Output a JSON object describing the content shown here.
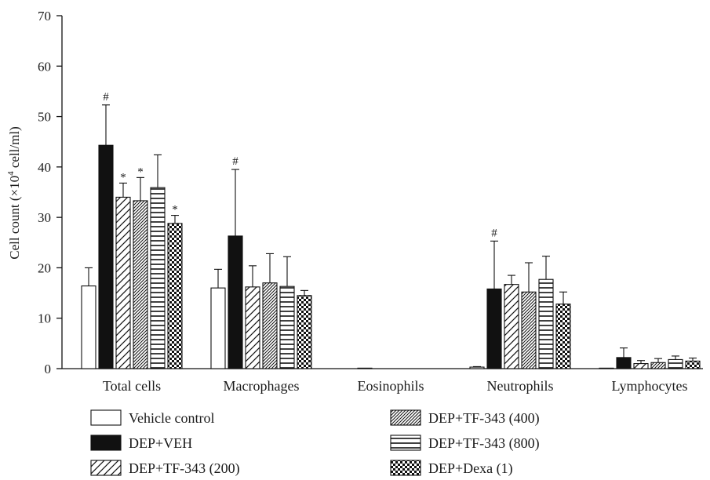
{
  "chart_data": {
    "type": "bar",
    "title": "",
    "ylabel_parts": {
      "main": "Cell count (×10",
      "sup": "4",
      "tail": " cell/ml)"
    },
    "ylim": [
      0,
      70
    ],
    "yticks": [
      0,
      10,
      20,
      30,
      40,
      50,
      60,
      70
    ],
    "grid": false,
    "legend_position": "bottom",
    "categories": [
      "Total cells",
      "Macrophages",
      "Eosinophils",
      "Neutrophils",
      "Lymphocytes"
    ],
    "series": [
      {
        "name": "Vehicle control",
        "pattern": "white",
        "values": [
          16.4,
          16.0,
          0,
          0.3,
          0.1
        ],
        "errors": [
          3.6,
          3.7,
          0,
          0.1,
          0
        ],
        "markers": [
          "",
          "",
          "",
          "",
          ""
        ]
      },
      {
        "name": "DEP+VEH",
        "pattern": "black",
        "values": [
          44.3,
          26.3,
          0.1,
          15.8,
          2.2
        ],
        "errors": [
          8.0,
          13.2,
          0,
          9.5,
          1.9
        ],
        "markers": [
          "#",
          "#",
          "",
          "#",
          ""
        ]
      },
      {
        "name": "DEP+TF-343 (200)",
        "pattern": "wide-diagonal",
        "values": [
          34.0,
          16.2,
          0,
          16.7,
          1.0
        ],
        "errors": [
          2.8,
          4.2,
          0,
          1.8,
          0.6
        ],
        "markers": [
          "*",
          "",
          "",
          "",
          ""
        ]
      },
      {
        "name": "DEP+TF-343 (400)",
        "pattern": "dense-diagonal",
        "values": [
          33.3,
          17.0,
          0,
          15.2,
          1.2
        ],
        "errors": [
          4.6,
          5.8,
          0,
          5.8,
          0.8
        ],
        "markers": [
          "*",
          "",
          "",
          "",
          ""
        ]
      },
      {
        "name": "DEP+TF-343 (800)",
        "pattern": "horizontal",
        "values": [
          35.9,
          16.3,
          0,
          17.7,
          1.8
        ],
        "errors": [
          6.5,
          5.9,
          0,
          4.6,
          0.7
        ],
        "markers": [
          "",
          "",
          "",
          "",
          ""
        ]
      },
      {
        "name": "DEP+Dexa (1)",
        "pattern": "checker",
        "values": [
          28.8,
          14.5,
          0,
          12.8,
          1.5
        ],
        "errors": [
          1.6,
          1.0,
          0,
          2.4,
          0.6
        ],
        "markers": [
          "*",
          "",
          "",
          "",
          ""
        ]
      }
    ]
  }
}
